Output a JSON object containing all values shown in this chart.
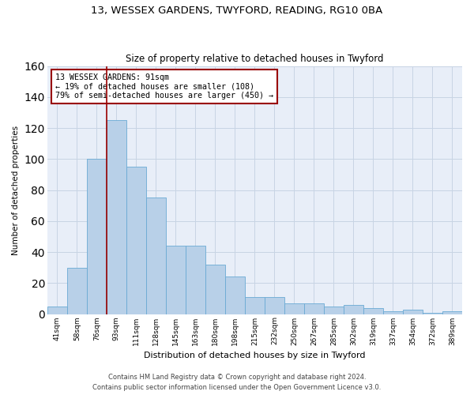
{
  "title1": "13, WESSEX GARDENS, TWYFORD, READING, RG10 0BA",
  "title2": "Size of property relative to detached houses in Twyford",
  "xlabel": "Distribution of detached houses by size in Twyford",
  "ylabel": "Number of detached properties",
  "bins": [
    "41sqm",
    "58sqm",
    "76sqm",
    "93sqm",
    "111sqm",
    "128sqm",
    "145sqm",
    "163sqm",
    "180sqm",
    "198sqm",
    "215sqm",
    "232sqm",
    "250sqm",
    "267sqm",
    "285sqm",
    "302sqm",
    "319sqm",
    "337sqm",
    "354sqm",
    "372sqm",
    "389sqm"
  ],
  "bar_heights": [
    5,
    30,
    100,
    125,
    95,
    75,
    44,
    44,
    32,
    24,
    11,
    11,
    7,
    7,
    5,
    6,
    4,
    2,
    3,
    1,
    2
  ],
  "bar_color": "#b8d0e8",
  "bar_edge_color": "#6aaad4",
  "grid_color": "#c8d4e4",
  "bg_color": "#e8eef8",
  "vline_color": "#990000",
  "annotation_line1": "13 WESSEX GARDENS: 91sqm",
  "annotation_line2": "← 19% of detached houses are smaller (108)",
  "annotation_line3": "79% of semi-detached houses are larger (450) →",
  "annotation_box_color": "white",
  "annotation_box_edge": "#990000",
  "ylim": [
    0,
    160
  ],
  "yticks": [
    0,
    20,
    40,
    60,
    80,
    100,
    120,
    140,
    160
  ],
  "footer1": "Contains HM Land Registry data © Crown copyright and database right 2024.",
  "footer2": "Contains public sector information licensed under the Open Government Licence v3.0."
}
